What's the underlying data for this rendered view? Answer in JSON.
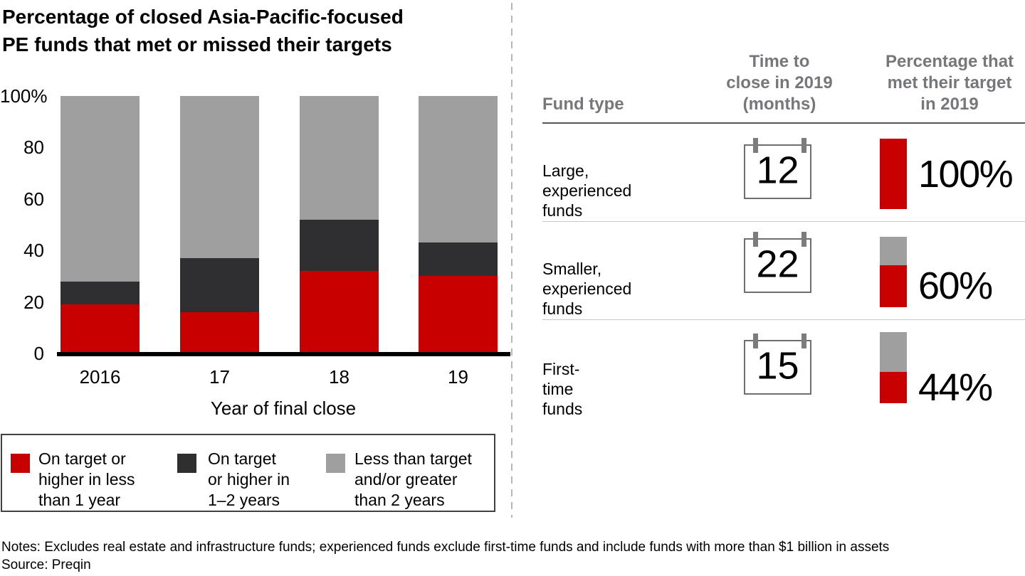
{
  "colors": {
    "red": "#c80000",
    "dark": "#2f2f31",
    "gray": "#9f9f9f",
    "header_text": "#76777a",
    "divider_dash": "#b7b7b7",
    "baseline": "#000000"
  },
  "chart": {
    "title_lines": [
      "Percentage of closed Asia-Pacific-focused",
      "PE funds that met or missed their targets"
    ],
    "xaxis_title": "Year of final close"
  },
  "chart_data": {
    "type": "bar",
    "stacked": true,
    "categories": [
      "2016",
      "17",
      "18",
      "19"
    ],
    "series": [
      {
        "name": "On target or higher in less than 1 year",
        "color": "#c80000",
        "values": [
          19,
          16,
          32,
          30
        ]
      },
      {
        "name": "On target or higher in 1–2 years",
        "color": "#2f2f31",
        "values": [
          9,
          21,
          20,
          13
        ]
      },
      {
        "name": "Less than target and/or greater than 2 years",
        "color": "#9f9f9f",
        "values": [
          72,
          63,
          48,
          57
        ]
      }
    ],
    "title": "Percentage of closed Asia-Pacific-focused PE funds that met or missed their targets",
    "xlabel": "Year of final close",
    "ylabel": "",
    "ylim": [
      0,
      100
    ],
    "yticks": [
      100,
      80,
      60,
      40,
      20,
      0
    ],
    "ytick_labels": [
      "100%",
      "80",
      "60",
      "40",
      "20",
      "0"
    ],
    "grid": false,
    "legend_position": "bottom"
  },
  "legend": {
    "items": [
      {
        "color": "#c80000",
        "label_lines": [
          "On target or",
          "higher in less",
          "than 1 year"
        ]
      },
      {
        "color": "#2f2f31",
        "label_lines": [
          "On target",
          "or higher in",
          "1–2 years"
        ]
      },
      {
        "color": "#9f9f9f",
        "label_lines": [
          "Less than target",
          "and/or greater",
          "than 2 years"
        ]
      }
    ]
  },
  "table": {
    "headers": {
      "fund_type": [
        "Fund type"
      ],
      "time_to_close": [
        "Time to",
        "close in 2019",
        "(months)"
      ],
      "percentage_met": [
        "Percentage that",
        "met their target",
        "in 2019"
      ]
    },
    "rows": [
      {
        "fund_type_lines": [
          "Large,",
          "experienced funds"
        ],
        "months": "12",
        "met_label": "100%",
        "met_value": 100
      },
      {
        "fund_type_lines": [
          "Smaller,",
          "experienced funds"
        ],
        "months": "22",
        "met_label": "60%",
        "met_value": 60
      },
      {
        "fund_type_lines": [
          "First-time funds"
        ],
        "months": "15",
        "met_label": "44%",
        "met_value": 44
      }
    ]
  },
  "footer": {
    "notes": "Notes: Excludes real estate and infrastructure funds; experienced funds exclude first-time funds and include funds with more than $1 billion in assets",
    "source": "Source: Preqin"
  }
}
